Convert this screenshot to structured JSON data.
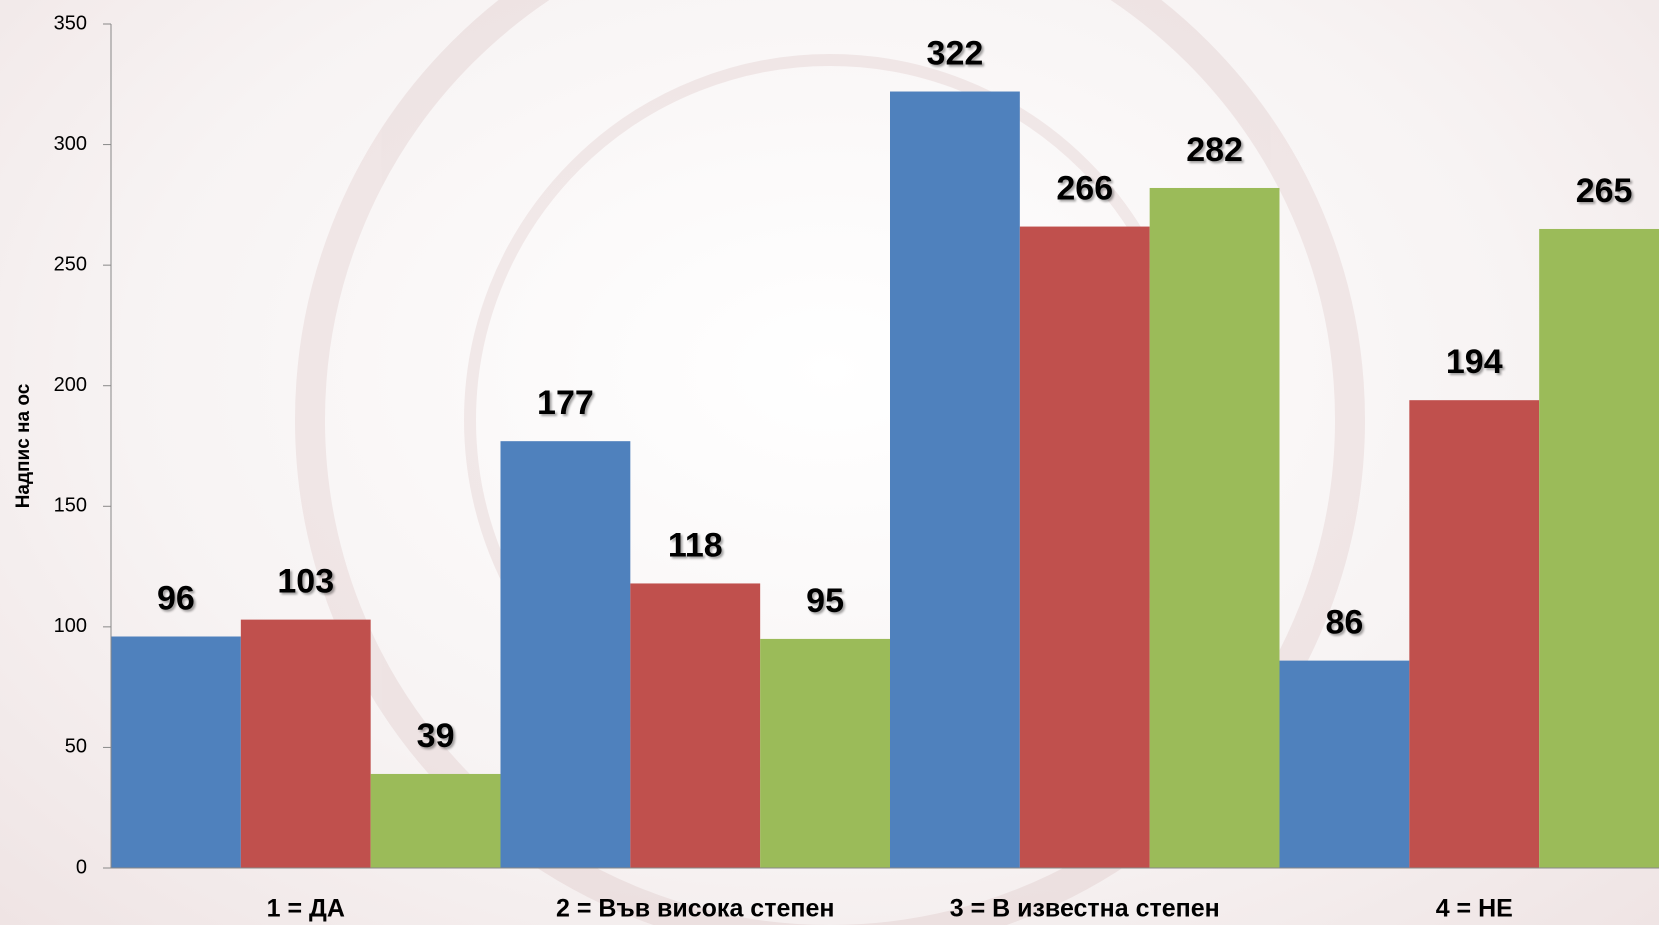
{
  "chart_data": {
    "type": "bar",
    "y_label": "Надпис на ос",
    "categories": [
      "1 = ДА",
      "2 = Във висока степен",
      "3 = В известна степен",
      "4 = НЕ"
    ],
    "series": [
      {
        "color": "#4f81bd",
        "values": [
          96,
          177,
          322,
          86
        ]
      },
      {
        "color": "#c0504d",
        "values": [
          103,
          118,
          266,
          194
        ]
      },
      {
        "color": "#9bbb59",
        "values": [
          39,
          95,
          282,
          265
        ]
      }
    ],
    "ylim": [
      0,
      350
    ],
    "yticks": [
      0,
      50,
      100,
      150,
      200,
      250,
      300,
      350
    ],
    "grid": false
  }
}
